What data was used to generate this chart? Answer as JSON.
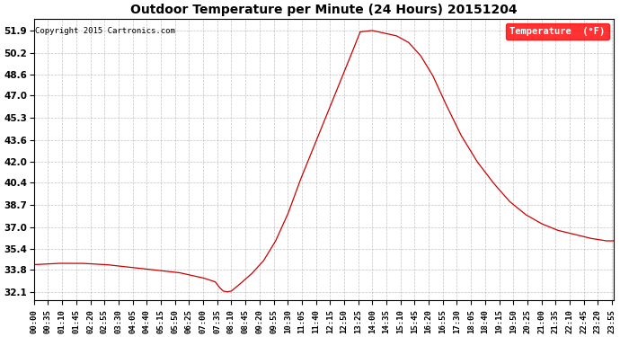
{
  "title": "Outdoor Temperature per Minute (24 Hours) 20151204",
  "copyright_text": "Copyright 2015 Cartronics.com",
  "legend_label": "Temperature  (°F)",
  "line_color": "#cc0000",
  "background_color": "#ffffff",
  "plot_bg_color": "#ffffff",
  "grid_color": "#aaaaaa",
  "yticks": [
    32.1,
    33.8,
    35.4,
    37.0,
    38.7,
    40.4,
    42.0,
    43.6,
    45.3,
    47.0,
    48.6,
    50.2,
    51.9
  ],
  "ylim": [
    31.5,
    52.8
  ],
  "xtick_labels": [
    "00:00",
    "00:35",
    "01:10",
    "01:45",
    "02:20",
    "02:55",
    "03:30",
    "04:05",
    "04:40",
    "05:15",
    "05:50",
    "06:25",
    "07:00",
    "07:35",
    "08:10",
    "08:45",
    "09:20",
    "09:55",
    "10:30",
    "11:05",
    "11:40",
    "12:15",
    "12:50",
    "13:25",
    "14:00",
    "14:35",
    "15:10",
    "15:45",
    "16:20",
    "16:55",
    "17:30",
    "18:05",
    "18:40",
    "19:15",
    "19:50",
    "20:25",
    "21:00",
    "21:35",
    "22:10",
    "22:45",
    "23:20",
    "23:55"
  ],
  "key_times": [
    0,
    60,
    120,
    180,
    240,
    300,
    360,
    420,
    450,
    460,
    470,
    480,
    490,
    510,
    540,
    570,
    600,
    630,
    660,
    700,
    740,
    780,
    810,
    840,
    870,
    900,
    930,
    960,
    990,
    1020,
    1060,
    1100,
    1140,
    1180,
    1220,
    1260,
    1300,
    1340,
    1380,
    1420,
    1439
  ],
  "key_temps": [
    34.2,
    34.3,
    34.3,
    34.2,
    34.0,
    33.8,
    33.6,
    33.2,
    32.9,
    32.5,
    32.2,
    32.15,
    32.2,
    32.7,
    33.5,
    34.5,
    36.0,
    38.0,
    40.5,
    43.5,
    46.5,
    49.5,
    51.8,
    51.9,
    51.7,
    51.5,
    51.0,
    50.0,
    48.5,
    46.5,
    44.0,
    42.0,
    40.4,
    39.0,
    38.0,
    37.3,
    36.8,
    36.5,
    36.2,
    36.0,
    36.0
  ]
}
